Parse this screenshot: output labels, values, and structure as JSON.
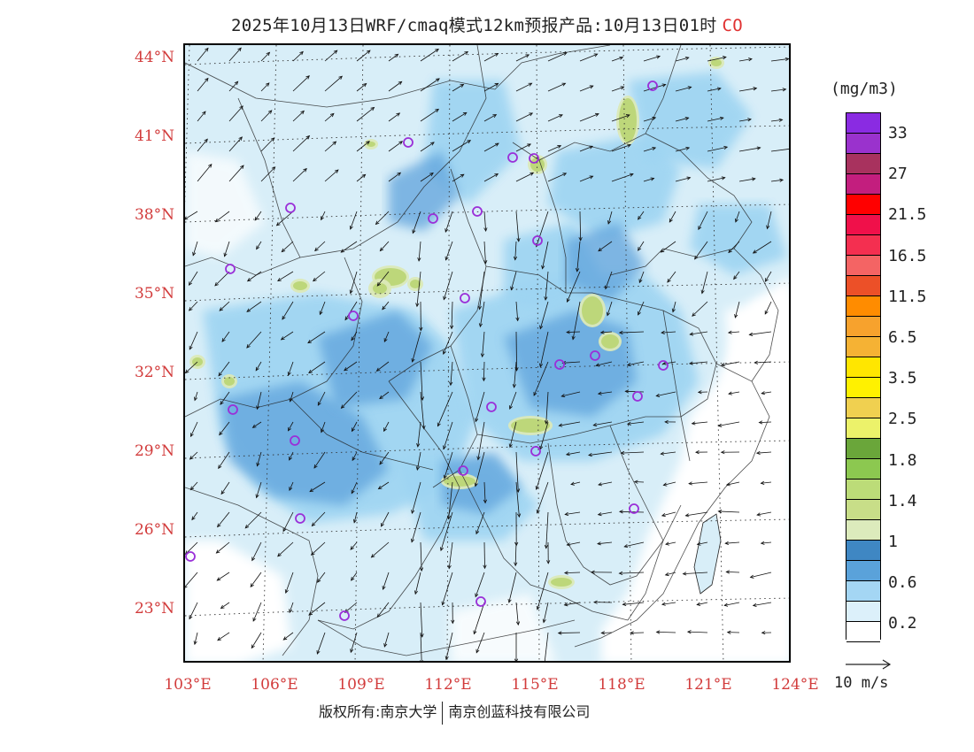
{
  "title": {
    "main": "2025年10月13日WRF/cmaq模式12km预报产品:10月13日01时",
    "species": "CO"
  },
  "map": {
    "lat_labels": [
      "44°N",
      "41°N",
      "38°N",
      "35°N",
      "32°N",
      "29°N",
      "26°N",
      "23°N"
    ],
    "lon_labels": [
      "103°E",
      "106°E",
      "109°E",
      "112°E",
      "115°E",
      "118°E",
      "121°E",
      "124°E"
    ],
    "lat_values": [
      44,
      41,
      38,
      35,
      32,
      29,
      26,
      23
    ],
    "lon_values": [
      103,
      106,
      109,
      112,
      115,
      118,
      121,
      124
    ],
    "station_color": "#9a2fd8",
    "background_colors": [
      "#ffffff",
      "#d8eef8",
      "#9dd4f2",
      "#5fa3dc",
      "#3d87c4",
      "#dbe9b8",
      "#bdd77a"
    ]
  },
  "legend": {
    "unit": "(mg/m3)",
    "labels": [
      "33",
      "27",
      "21.5",
      "16.5",
      "11.5",
      "6.5",
      "3.5",
      "2.5",
      "1.8",
      "1.4",
      "1",
      "0.6",
      "0.2"
    ],
    "colors": [
      "#8a2be2",
      "#9a32cd",
      "#a8325e",
      "#c31e7e",
      "#ff0000",
      "#f0104a",
      "#f42f50",
      "#f46464",
      "#ec5028",
      "#ff8c00",
      "#f7a22d",
      "#f5b234",
      "#ffe600",
      "#fff100",
      "#f0d050",
      "#ecf26a",
      "#6aa63a",
      "#8cc850",
      "#bcdc78",
      "#c8de88",
      "#dcebbc",
      "#3f87c3",
      "#5aa2da",
      "#a4d6f4",
      "#dcf0fa",
      "#ffffff"
    ]
  },
  "wind_reference": {
    "label": "10 m/s"
  },
  "footer": {
    "copyright": "版权所有:南京大学",
    "company": "南京创蓝科技有限公司"
  }
}
